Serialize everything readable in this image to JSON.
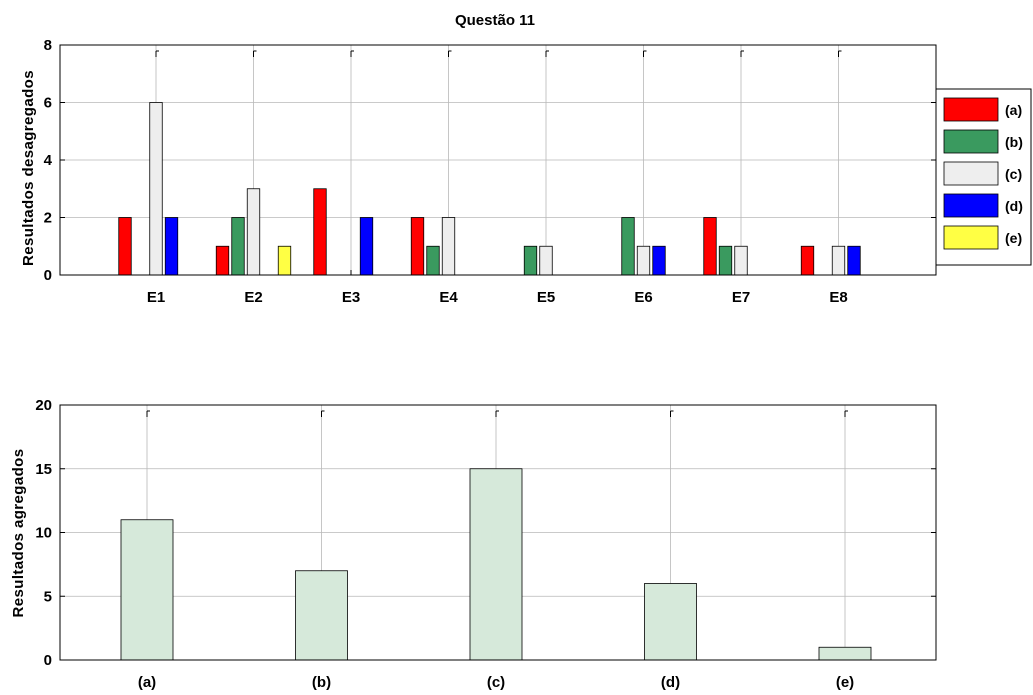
{
  "chart_data": [
    {
      "type": "bar",
      "title": "Questão 11",
      "xlabel": "",
      "ylabel": "Resultados desagregados",
      "categories": [
        "E1",
        "E2",
        "E3",
        "E4",
        "E5",
        "E6",
        "E7",
        "E8"
      ],
      "ylim": [
        0,
        8
      ],
      "yticks": [
        0,
        2,
        4,
        6,
        8
      ],
      "grid": true,
      "legend_position": "right",
      "series": [
        {
          "name": "(a)",
          "color": "#ff0000",
          "values": [
            2,
            1,
            3,
            2,
            0,
            0,
            2,
            1
          ]
        },
        {
          "name": "(b)",
          "color": "#3a9a5f",
          "values": [
            0,
            2,
            0,
            1,
            1,
            2,
            1,
            0
          ]
        },
        {
          "name": "(c)",
          "color": "#eeeeee",
          "values": [
            6,
            3,
            0,
            2,
            1,
            1,
            1,
            1
          ]
        },
        {
          "name": "(d)",
          "color": "#0000ff",
          "values": [
            2,
            0,
            2,
            0,
            0,
            1,
            0,
            1
          ]
        },
        {
          "name": "(e)",
          "color": "#ffff44",
          "values": [
            0,
            1,
            0,
            0,
            0,
            0,
            0,
            0
          ]
        }
      ]
    },
    {
      "type": "bar",
      "title": "",
      "xlabel": "",
      "ylabel": "Resultados agregados",
      "categories": [
        "(a)",
        "(b)",
        "(c)",
        "(d)",
        "(e)"
      ],
      "ylim": [
        0,
        20
      ],
      "yticks": [
        0,
        5,
        10,
        15,
        20
      ],
      "grid": true,
      "bar_color": "#d6e9da",
      "values": [
        11,
        7,
        15,
        6,
        1
      ]
    }
  ]
}
